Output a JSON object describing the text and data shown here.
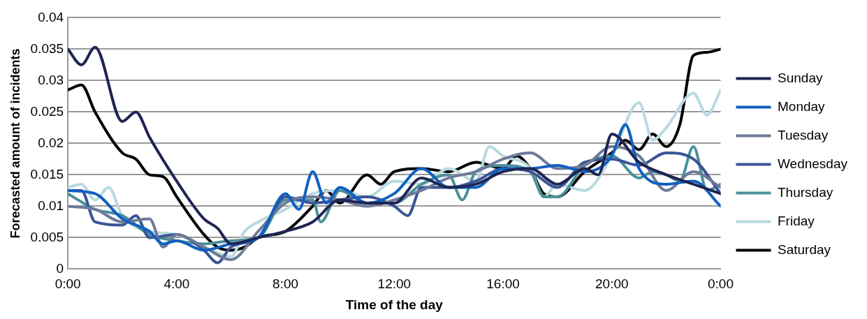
{
  "chart_data": {
    "type": "line",
    "xlabel": "Time of the day",
    "ylabel": "Forecasted amount of incidents",
    "xlim": [
      0,
      24
    ],
    "xticks": [
      {
        "value": 0,
        "label": "0:00"
      },
      {
        "value": 4,
        "label": "4:00"
      },
      {
        "value": 8,
        "label": "8:00"
      },
      {
        "value": 12,
        "label": "12:00"
      },
      {
        "value": 16,
        "label": "16:00"
      },
      {
        "value": 20,
        "label": "20:00"
      },
      {
        "value": 24,
        "label": "0:00"
      }
    ],
    "ylim": [
      0,
      0.04
    ],
    "yticks": [
      0,
      0.005,
      0.01,
      0.015,
      0.02,
      0.025,
      0.03,
      0.035,
      0.04
    ],
    "grid": "y",
    "legend": "right",
    "marker": "none",
    "line_style": "solid",
    "series": [
      {
        "name": "Sunday",
        "color": "#1f2553",
        "x": [
          0,
          0.5,
          1,
          2,
          2.5,
          3,
          4,
          5,
          5.5,
          6,
          7,
          8,
          9,
          10,
          11,
          12,
          13,
          14,
          15,
          16,
          17,
          18,
          19,
          19.5,
          20,
          21,
          22,
          23,
          24
        ],
        "values": [
          0.035,
          0.0325,
          0.0353,
          0.0235,
          0.025,
          0.021,
          0.014,
          0.008,
          0.0065,
          0.004,
          0.005,
          0.006,
          0.0075,
          0.011,
          0.0105,
          0.0105,
          0.0145,
          0.013,
          0.0135,
          0.0155,
          0.016,
          0.0135,
          0.016,
          0.015,
          0.0215,
          0.017,
          0.015,
          0.0135,
          0.012
        ]
      },
      {
        "name": "Monday",
        "color": "#1060c0",
        "x": [
          0,
          1,
          2,
          3,
          3.5,
          4,
          5,
          6,
          7,
          8,
          8.5,
          9,
          9.5,
          10,
          11,
          12,
          13,
          14,
          15,
          16,
          17,
          18,
          19,
          20,
          20.5,
          21,
          22,
          23,
          24
        ],
        "values": [
          0.0125,
          0.012,
          0.008,
          0.006,
          0.004,
          0.0045,
          0.003,
          0.004,
          0.005,
          0.012,
          0.0095,
          0.0155,
          0.0105,
          0.013,
          0.0105,
          0.012,
          0.016,
          0.013,
          0.013,
          0.016,
          0.016,
          0.0165,
          0.0155,
          0.018,
          0.023,
          0.016,
          0.0135,
          0.014,
          0.01
        ]
      },
      {
        "name": "Tuesday",
        "color": "#6e7a98",
        "x": [
          0,
          1,
          2,
          3,
          3.5,
          4,
          5,
          6,
          7,
          8,
          9,
          10,
          11,
          12,
          13,
          14,
          15,
          16,
          17,
          18,
          19,
          20,
          21,
          22,
          23,
          24
        ],
        "values": [
          0.01,
          0.0095,
          0.0075,
          0.008,
          0.0035,
          0.0055,
          0.0035,
          0.0015,
          0.006,
          0.0105,
          0.0115,
          0.011,
          0.01,
          0.011,
          0.0125,
          0.0145,
          0.0155,
          0.0175,
          0.0185,
          0.016,
          0.0165,
          0.0195,
          0.018,
          0.0125,
          0.0155,
          0.013
        ]
      },
      {
        "name": "Wednesday",
        "color": "#3c5496",
        "x": [
          0,
          0.5,
          1,
          2,
          2.5,
          3,
          4,
          5,
          5.5,
          6,
          7,
          8,
          9,
          10,
          11,
          12,
          12.5,
          13,
          14,
          15,
          16,
          17,
          18,
          19,
          20,
          21,
          22,
          23,
          24
        ],
        "values": [
          0.0125,
          0.0125,
          0.0075,
          0.007,
          0.0085,
          0.005,
          0.0055,
          0.003,
          0.001,
          0.0035,
          0.005,
          0.0115,
          0.0105,
          0.011,
          0.0115,
          0.01,
          0.0085,
          0.013,
          0.013,
          0.014,
          0.016,
          0.0155,
          0.013,
          0.017,
          0.0175,
          0.0165,
          0.0185,
          0.0175,
          0.012
        ]
      },
      {
        "name": "Thursday",
        "color": "#4a9098",
        "x": [
          0,
          1,
          2,
          3,
          4,
          5,
          6,
          7,
          8,
          9,
          9.3,
          10,
          11,
          12,
          13,
          14,
          14.5,
          15,
          16,
          17,
          17.5,
          18,
          19,
          20,
          21,
          21.5,
          22,
          22.5,
          23,
          23.5,
          24
        ],
        "values": [
          0.012,
          0.0095,
          0.0085,
          0.0055,
          0.0045,
          0.004,
          0.0045,
          0.005,
          0.011,
          0.011,
          0.0075,
          0.0125,
          0.0105,
          0.0105,
          0.0135,
          0.015,
          0.011,
          0.0155,
          0.0165,
          0.0155,
          0.0115,
          0.0115,
          0.0165,
          0.018,
          0.0145,
          0.0155,
          0.015,
          0.014,
          0.0195,
          0.0125,
          0.0135
        ]
      },
      {
        "name": "Friday",
        "color": "#b8dae0",
        "x": [
          0,
          0.5,
          1,
          1.5,
          2,
          3,
          4,
          5,
          6,
          6.5,
          7,
          8,
          9,
          10,
          11,
          12,
          13,
          14,
          15,
          15.5,
          16,
          17,
          17.5,
          18,
          19,
          20,
          21,
          21.5,
          22,
          23,
          23.5,
          24
        ],
        "values": [
          0.013,
          0.0135,
          0.011,
          0.013,
          0.0085,
          0.006,
          0.0055,
          0.0035,
          0.002,
          0.006,
          0.0075,
          0.0095,
          0.012,
          0.0125,
          0.0115,
          0.014,
          0.0135,
          0.016,
          0.014,
          0.0195,
          0.018,
          0.016,
          0.0115,
          0.0135,
          0.0125,
          0.018,
          0.0265,
          0.0205,
          0.0225,
          0.028,
          0.0245,
          0.0285
        ]
      },
      {
        "name": "Saturday",
        "color": "#000000",
        "x": [
          0,
          0.5,
          1,
          2,
          2.5,
          3,
          3.5,
          4,
          5,
          5.5,
          6,
          6.5,
          7,
          8,
          9,
          9.5,
          10,
          11,
          11.5,
          12,
          13,
          14,
          15,
          16,
          16.5,
          17,
          17.5,
          18,
          19,
          20,
          20.5,
          21,
          21.5,
          22,
          22.5,
          23,
          23.5,
          24
        ],
        "values": [
          0.0285,
          0.0293,
          0.025,
          0.0185,
          0.0175,
          0.015,
          0.0147,
          0.0115,
          0.0055,
          0.0035,
          0.003,
          0.0035,
          0.005,
          0.006,
          0.01,
          0.0125,
          0.0105,
          0.015,
          0.0135,
          0.0155,
          0.016,
          0.0155,
          0.017,
          0.016,
          0.018,
          0.016,
          0.012,
          0.0115,
          0.0155,
          0.0185,
          0.0205,
          0.019,
          0.0215,
          0.0195,
          0.023,
          0.034,
          0.0345,
          0.035
        ]
      }
    ]
  }
}
